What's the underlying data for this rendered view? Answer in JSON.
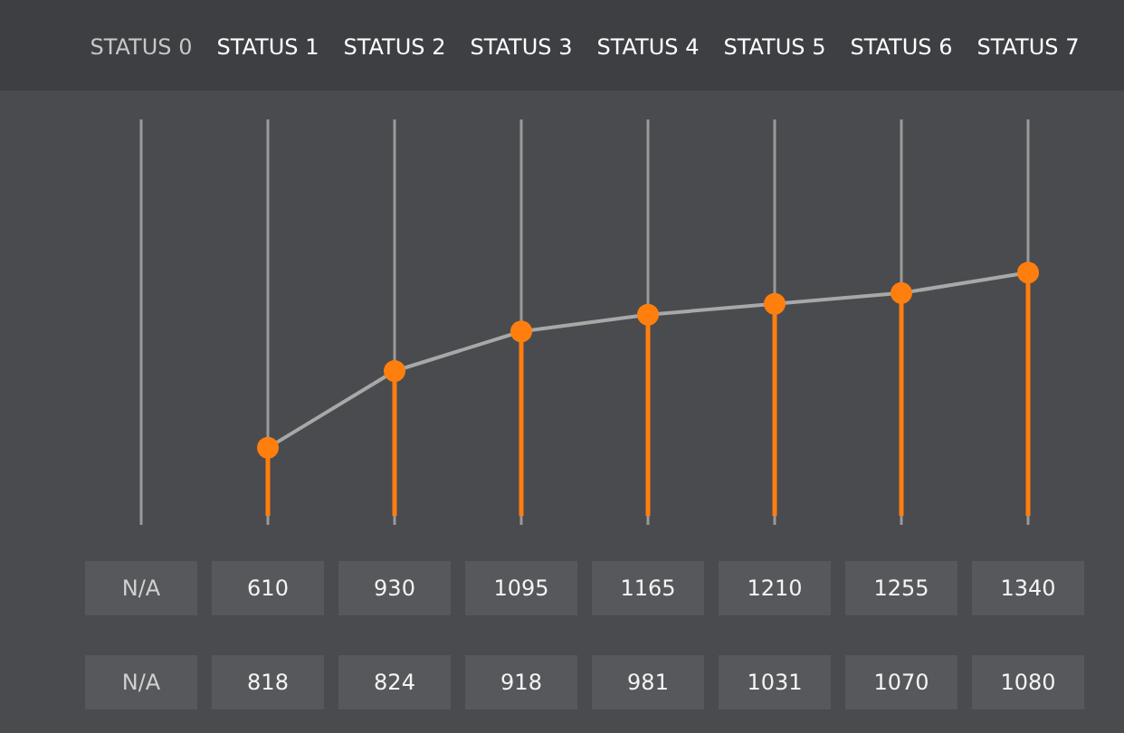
{
  "chart_data": {
    "type": "line",
    "categories": [
      "STATUS 0",
      "STATUS 1",
      "STATUS 2",
      "STATUS 3",
      "STATUS 4",
      "STATUS 5",
      "STATUS 6",
      "STATUS 7"
    ],
    "series": [
      {
        "color": "#ff7f0e",
        "values": [
          null,
          610,
          930,
          1095,
          1165,
          1210,
          1255,
          1340
        ],
        "value_labels": [
          "N/A",
          "610",
          "930",
          "1095",
          "1165",
          "1210",
          "1255",
          "1340"
        ]
      }
    ],
    "annotations": [
      "N/A",
      "818",
      "824",
      "918",
      "981",
      "1031",
      "1070",
      "1080"
    ],
    "marker": "circle",
    "grid": "x"
  }
}
